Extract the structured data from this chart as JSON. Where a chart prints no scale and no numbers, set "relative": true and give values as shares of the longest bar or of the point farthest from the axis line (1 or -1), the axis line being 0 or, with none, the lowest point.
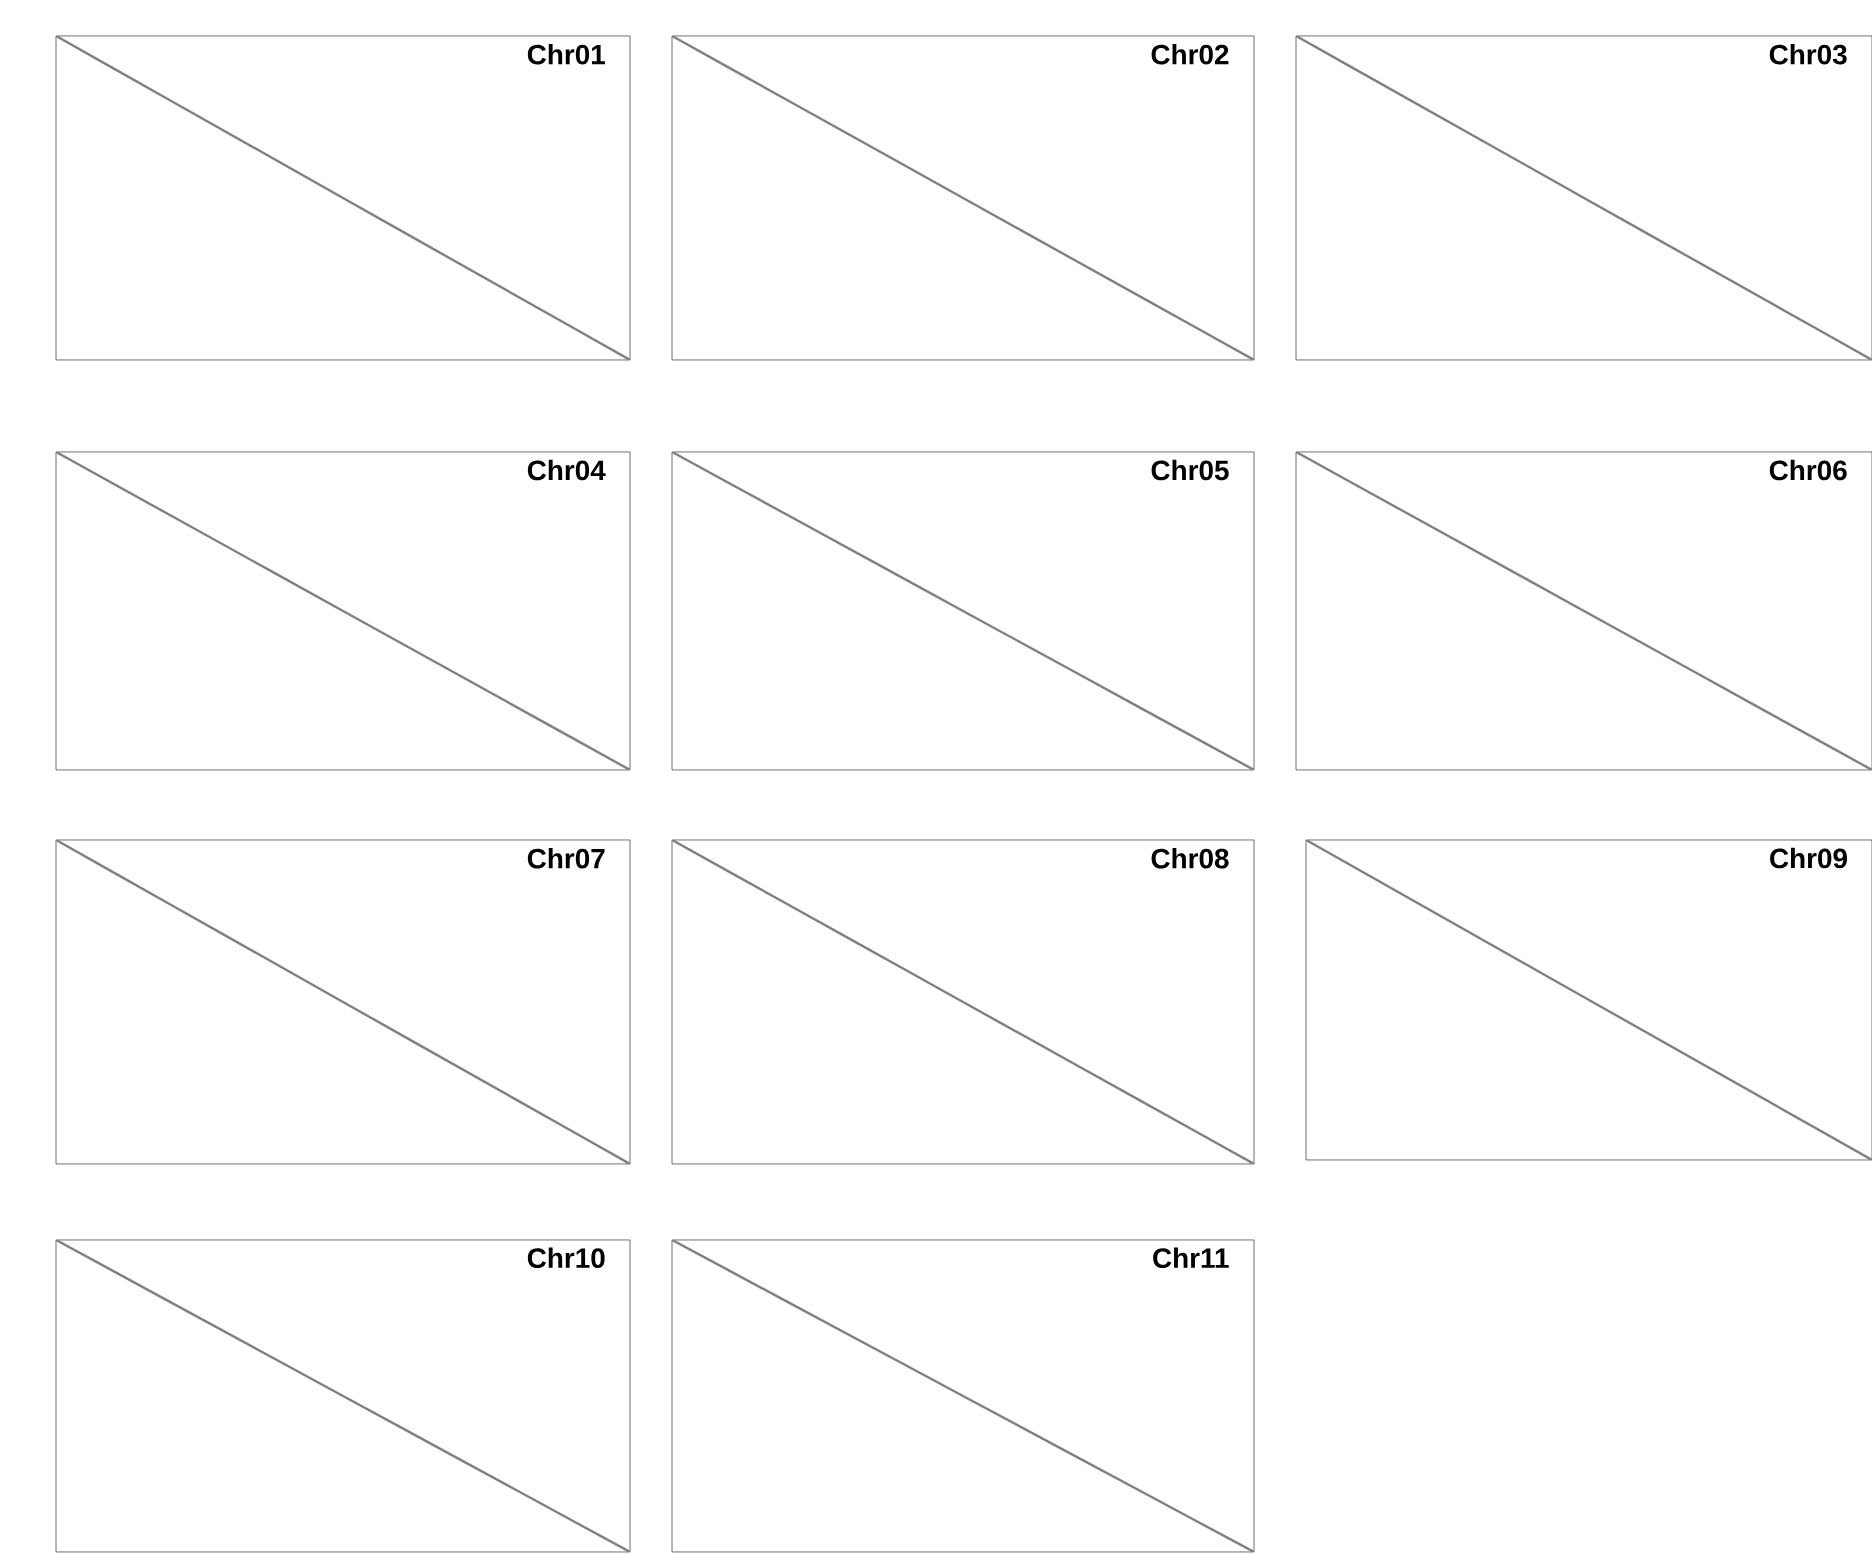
{
  "chart_data": [
    {
      "type": "line",
      "title": "Chr01",
      "relative": true,
      "tick_labels": false,
      "categories": [
        null,
        null,
        null,
        null,
        null,
        null,
        null,
        null,
        null,
        null,
        null
      ],
      "values": [
        1,
        0.9,
        0.8,
        0.7,
        0.6,
        0.5,
        0.4,
        0.3,
        0.2,
        0.1,
        0
      ],
      "color": "#808080"
    },
    {
      "type": "line",
      "title": "Chr02",
      "relative": true,
      "tick_labels": false,
      "categories": [
        null,
        null,
        null,
        null,
        null,
        null,
        null,
        null,
        null,
        null,
        null
      ],
      "values": [
        1,
        0.9,
        0.8,
        0.7,
        0.6,
        0.5,
        0.4,
        0.3,
        0.2,
        0.1,
        0
      ],
      "color": "#808080"
    },
    {
      "type": "line",
      "title": "Chr03",
      "relative": true,
      "tick_labels": false,
      "categories": [
        null,
        null,
        null,
        null,
        null,
        null,
        null,
        null,
        null,
        null,
        null
      ],
      "values": [
        1,
        0.9,
        0.8,
        0.7,
        0.6,
        0.5,
        0.4,
        0.3,
        0.2,
        0.1,
        0
      ],
      "color": "#808080"
    },
    {
      "type": "line",
      "title": "Chr04",
      "relative": true,
      "tick_labels": false,
      "categories": [
        null,
        null,
        null,
        null,
        null,
        null,
        null,
        null,
        null,
        null,
        null
      ],
      "values": [
        1,
        0.9,
        0.8,
        0.7,
        0.6,
        0.5,
        0.4,
        0.3,
        0.2,
        0.1,
        0
      ],
      "color": "#808080"
    },
    {
      "type": "line",
      "title": "Chr05",
      "relative": true,
      "tick_labels": false,
      "categories": [
        null,
        null,
        null,
        null,
        null,
        null,
        null,
        null,
        null,
        null,
        null
      ],
      "values": [
        1,
        0.9,
        0.8,
        0.7,
        0.6,
        0.5,
        0.4,
        0.3,
        0.2,
        0.1,
        0
      ],
      "color": "#808080"
    },
    {
      "type": "line",
      "title": "Chr06",
      "relative": true,
      "tick_labels": false,
      "categories": [
        null,
        null,
        null,
        null,
        null,
        null,
        null,
        null,
        null,
        null,
        null
      ],
      "values": [
        1,
        0.9,
        0.8,
        0.7,
        0.6,
        0.5,
        0.4,
        0.3,
        0.2,
        0.1,
        0
      ],
      "color": "#808080"
    },
    {
      "type": "line",
      "title": "Chr07",
      "relative": true,
      "tick_labels": false,
      "categories": [
        null,
        null,
        null,
        null,
        null,
        null,
        null,
        null,
        null,
        null,
        null
      ],
      "values": [
        1,
        0.9,
        0.8,
        0.7,
        0.6,
        0.5,
        0.4,
        0.3,
        0.2,
        0.1,
        0
      ],
      "color": "#808080"
    },
    {
      "type": "line",
      "title": "Chr08",
      "relative": true,
      "tick_labels": false,
      "categories": [
        null,
        null,
        null,
        null,
        null,
        null,
        null,
        null,
        null,
        null,
        null
      ],
      "values": [
        1,
        0.9,
        0.8,
        0.7,
        0.6,
        0.5,
        0.4,
        0.3,
        0.2,
        0.1,
        0
      ],
      "color": "#808080"
    },
    {
      "type": "line",
      "title": "Chr09",
      "relative": true,
      "tick_labels": false,
      "categories": [
        null,
        null,
        null,
        null,
        null,
        null,
        null,
        null,
        null,
        null,
        null
      ],
      "values": [
        1,
        0.9,
        0.8,
        0.7,
        0.6,
        0.5,
        0.4,
        0.3,
        0.2,
        0.1,
        0
      ],
      "color": "#808080"
    },
    {
      "type": "line",
      "title": "Chr10",
      "relative": true,
      "tick_labels": false,
      "categories": [
        null,
        null,
        null,
        null,
        null,
        null,
        null,
        null,
        null,
        null,
        null
      ],
      "values": [
        1,
        0.9,
        0.8,
        0.7,
        0.6,
        0.5,
        0.4,
        0.3,
        0.2,
        0.1,
        0
      ],
      "color": "#808080"
    },
    {
      "type": "line",
      "title": "Chr11",
      "relative": true,
      "tick_labels": false,
      "categories": [
        null,
        null,
        null,
        null,
        null,
        null,
        null,
        null,
        null,
        null,
        null
      ],
      "values": [
        1,
        0.9,
        0.8,
        0.7,
        0.6,
        0.5,
        0.4,
        0.3,
        0.2,
        0.1,
        0
      ],
      "color": "#808080"
    }
  ]
}
